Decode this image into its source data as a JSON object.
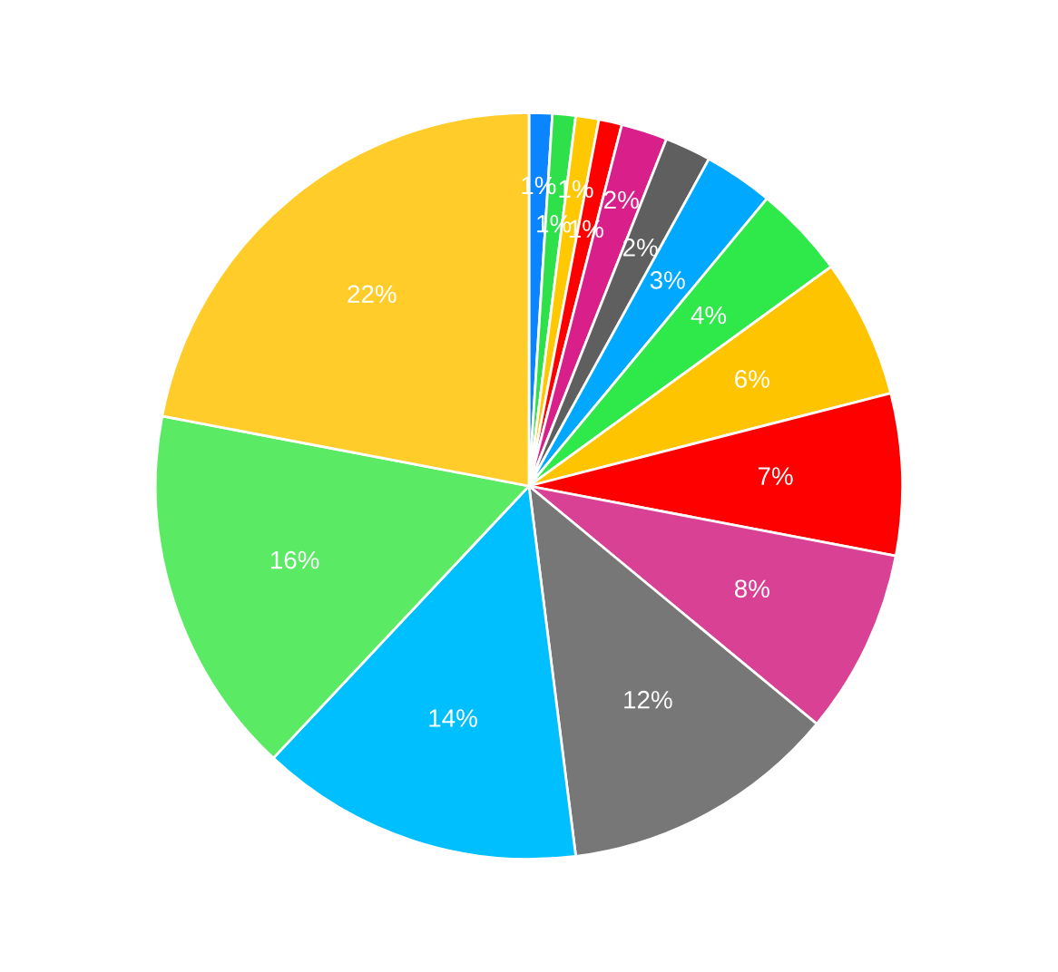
{
  "chart_data": {
    "type": "pie",
    "categories": [
      null,
      null,
      null,
      null,
      null,
      null,
      null,
      null,
      null,
      null,
      null,
      null,
      null,
      null,
      null
    ],
    "values": [
      1,
      1,
      1,
      1,
      2,
      2,
      3,
      4,
      6,
      7,
      8,
      12,
      14,
      16,
      22
    ],
    "value_labels": [
      "1%",
      "1%",
      "1%",
      "1%",
      "2%",
      "2%",
      "3%",
      "4%",
      "6%",
      "7%",
      "8%",
      "12%",
      "14%",
      "16%",
      "22%"
    ],
    "colors": [
      "#0a84ff",
      "#2ee04a",
      "#ffc800",
      "#ff0000",
      "#d9208a",
      "#5f5f5f",
      "#00a8ff",
      "#2fe84a",
      "#ffc400",
      "#ff0000",
      "#d94194",
      "#777777",
      "#00bfff",
      "#5bea64",
      "#ffcc2a"
    ]
  }
}
